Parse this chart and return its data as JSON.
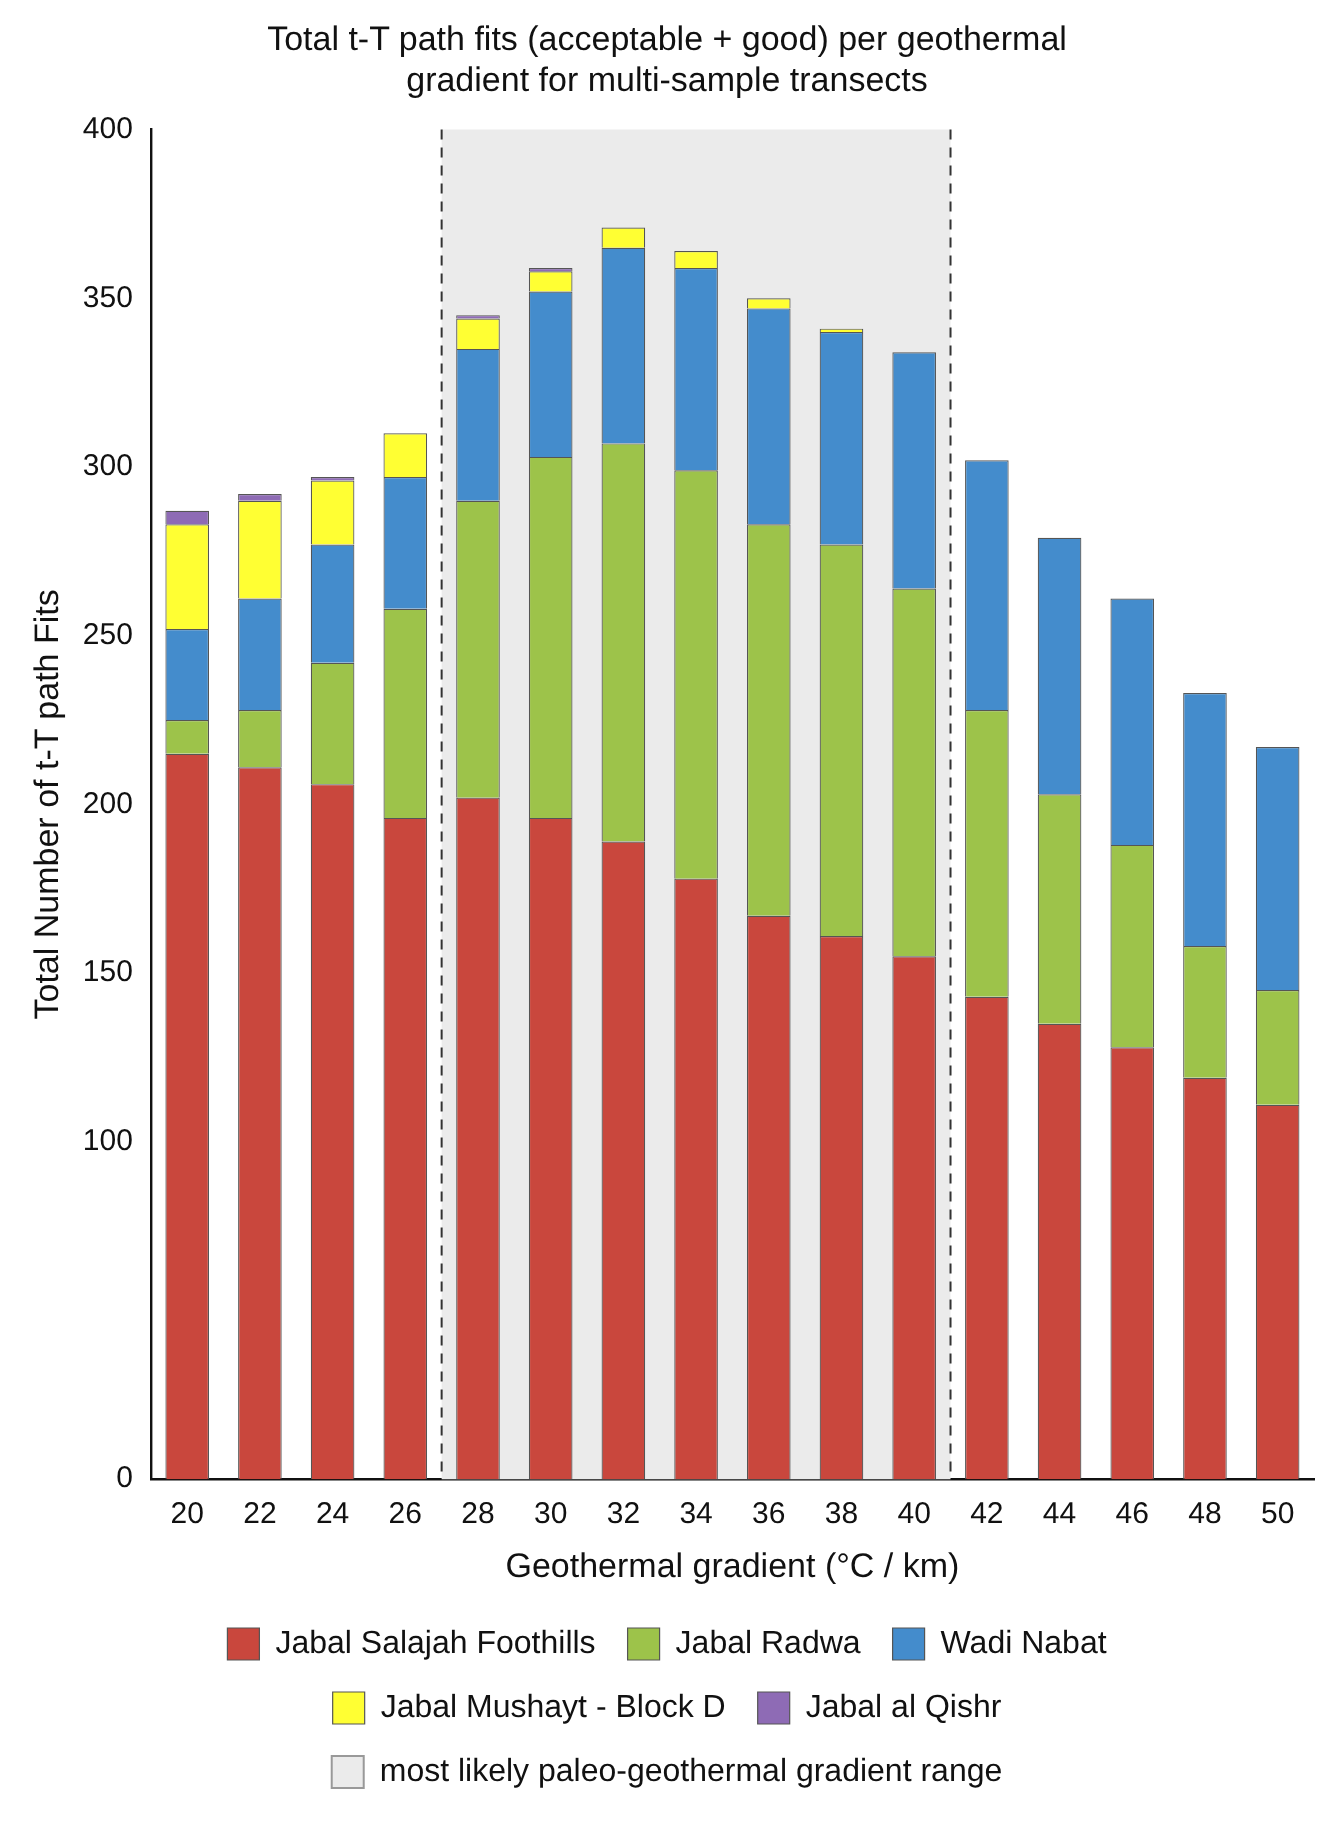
{
  "chart_data": {
    "type": "bar",
    "title": "Total t-T path fits (acceptable + good) per geothermal\ngradient for multi-sample transects",
    "xlabel": "Geothermal gradient (°C / km)",
    "ylabel": "Total Number of t-T path Fits",
    "categories": [
      "20",
      "22",
      "24",
      "26",
      "28",
      "30",
      "32",
      "34",
      "36",
      "38",
      "40",
      "42",
      "44",
      "46",
      "48",
      "50"
    ],
    "stacked": true,
    "series": [
      {
        "name": "Jabal Salajah Foothills",
        "color": "#c9473d",
        "values": [
          215,
          211,
          206,
          196,
          202,
          196,
          189,
          178,
          167,
          161,
          155,
          143,
          135,
          128,
          119,
          111
        ]
      },
      {
        "name": "Jabal Radwa",
        "color": "#9dc34a",
        "values": [
          10,
          17,
          36,
          62,
          88,
          107,
          118,
          121,
          116,
          116,
          109,
          85,
          68,
          60,
          39,
          34
        ]
      },
      {
        "name": "Wadi Nabat",
        "color": "#448ccc",
        "values": [
          27,
          33,
          35,
          39,
          45,
          49,
          58,
          60,
          64,
          63,
          70,
          74,
          76,
          73,
          75,
          72
        ]
      },
      {
        "name": "Jabal Mushayt - Block D",
        "color": "#ffff33",
        "values": [
          31,
          29,
          19,
          13,
          9,
          6,
          6,
          5,
          3,
          1,
          null,
          null,
          null,
          null,
          null,
          null
        ]
      },
      {
        "name": "Jabal al Qishr",
        "color": "#8e6bb5",
        "values": [
          4,
          2,
          1,
          null,
          1,
          1,
          null,
          null,
          null,
          null,
          null,
          null,
          null,
          null,
          null,
          null
        ]
      }
    ],
    "ylim": [
      0,
      400
    ],
    "yticks": [
      0,
      100,
      150,
      200,
      250,
      300,
      350,
      400
    ],
    "grid": false,
    "legend": "bottom",
    "bands": [
      {
        "axis": "x",
        "from": "28",
        "to": "40",
        "label": "most likely paleo-geothermal gradient range",
        "color": "#ebebeb"
      }
    ]
  }
}
